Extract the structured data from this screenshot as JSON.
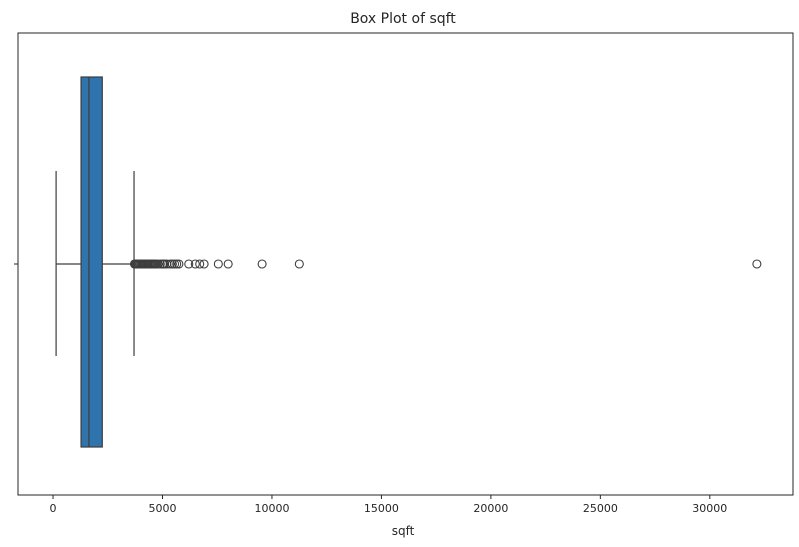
{
  "chart_data": {
    "type": "box",
    "title": "Box Plot of sqft",
    "xlabel": "sqft",
    "ylabel": "",
    "xlim": [
      -1600,
      33800
    ],
    "x_ticks": [
      0,
      5000,
      10000,
      15000,
      20000,
      25000,
      30000
    ],
    "x_tick_labels": [
      "0",
      "5000",
      "10000",
      "15000",
      "20000",
      "25000",
      "30000"
    ],
    "grid": false,
    "box_color": "#2f74ad",
    "line_color": "#3d3d3d",
    "box": {
      "whisker_low": 140,
      "q1": 1280,
      "median": 1640,
      "q3": 2250,
      "whisker_high": 3700
    },
    "outliers": [
      3720,
      3760,
      3800,
      3850,
      3900,
      3950,
      4000,
      4050,
      4100,
      4150,
      4200,
      4250,
      4300,
      4350,
      4400,
      4450,
      4500,
      4550,
      4600,
      4650,
      4700,
      4800,
      4900,
      5000,
      5050,
      5100,
      5200,
      5350,
      5450,
      5550,
      5650,
      5750,
      6200,
      6500,
      6700,
      6900,
      7550,
      8000,
      9550,
      11250,
      32150
    ]
  }
}
